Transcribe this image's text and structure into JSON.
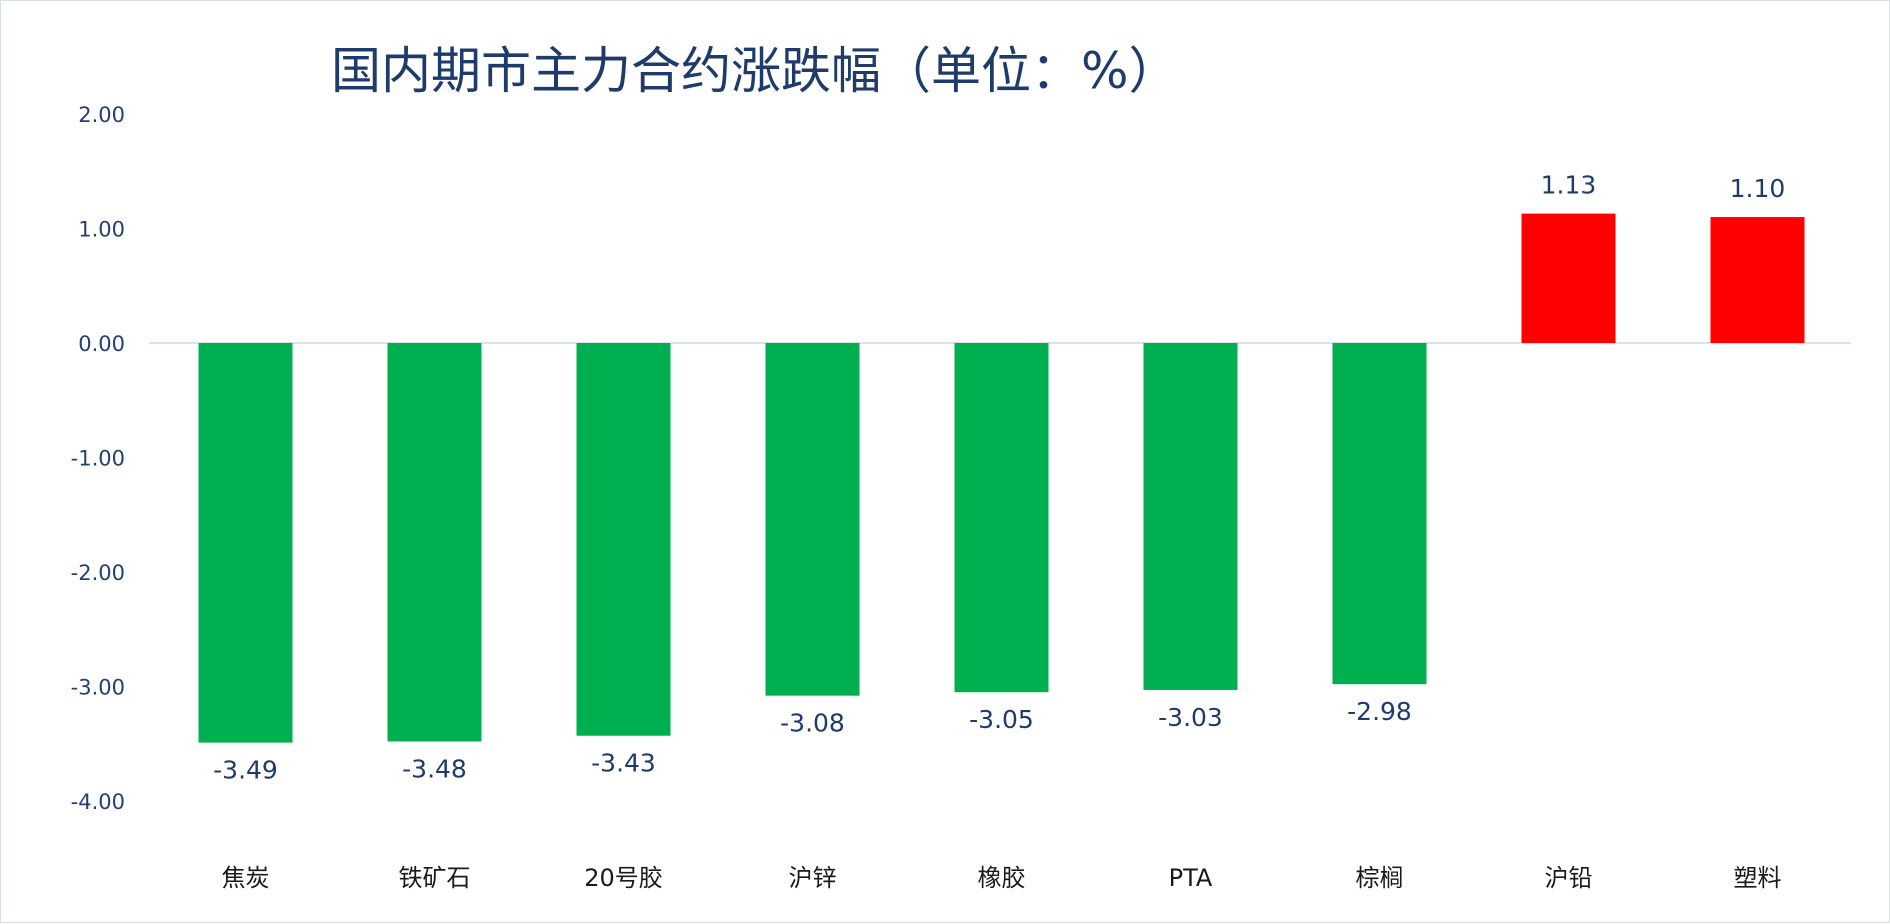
{
  "chart_data": {
    "type": "bar",
    "title": "国内期市主力合约涨跌幅（单位：%）",
    "xlabel": "",
    "ylabel": "",
    "categories": [
      "焦炭",
      "铁矿石",
      "20号胶",
      "沪锌",
      "橡胶",
      "PTA",
      "棕榈",
      "沪铅",
      "塑料"
    ],
    "values": [
      -3.49,
      -3.48,
      -3.43,
      -3.08,
      -3.05,
      -3.03,
      -2.98,
      1.13,
      1.1
    ],
    "data_labels": [
      "-3.49",
      "-3.48",
      "-3.43",
      "-3.08",
      "-3.05",
      "-3.03",
      "-2.98",
      "1.13",
      "1.10"
    ],
    "ylim": [
      -4,
      2
    ],
    "yticks": [
      2,
      1,
      0,
      -1,
      -2,
      -3,
      -4
    ],
    "ytick_labels": [
      "2.00",
      "1.00",
      "0.00",
      "-1.00",
      "-2.00",
      "-3.00",
      "-4.00"
    ],
    "grid": false,
    "legend": "none",
    "colors": {
      "positive": "#ff0000",
      "negative": "#00b050",
      "axis": "#d9e2ee",
      "title": "#1f3b6b",
      "tick_text": "#243f73"
    }
  }
}
